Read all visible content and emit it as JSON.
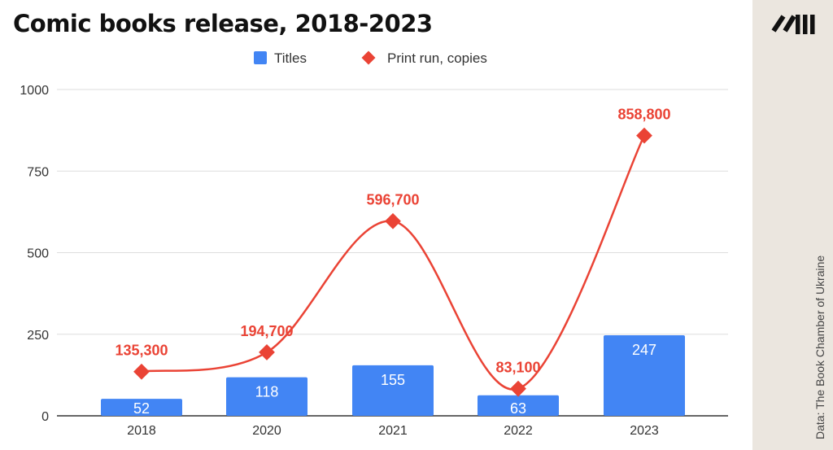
{
  "chart_data": {
    "type": "bar",
    "title": "Comic books release, 2018-2023",
    "categories": [
      "2018",
      "2020",
      "2021",
      "2022",
      "2023"
    ],
    "series": [
      {
        "name": "Titles",
        "type": "bar",
        "values": [
          52,
          118,
          155,
          63,
          247
        ],
        "labels": [
          "52",
          "118",
          "155",
          "63",
          "247"
        ],
        "color": "#4285f4"
      },
      {
        "name": "Print run, copies",
        "type": "line",
        "values": [
          135300,
          194700,
          596700,
          83100,
          858800
        ],
        "labels": [
          "135,300",
          "194,700",
          "596,700",
          "83,100",
          "858,800"
        ],
        "color": "#ea4335",
        "marker": "diamond",
        "smooth": true
      }
    ],
    "yticks": [
      "0",
      "250",
      "500",
      "750",
      "1000"
    ],
    "ylim": [
      0,
      1000
    ],
    "grid": true,
    "legend": "top"
  },
  "source": "Data: The Book Chamber of Ukraine",
  "logo": "//III"
}
